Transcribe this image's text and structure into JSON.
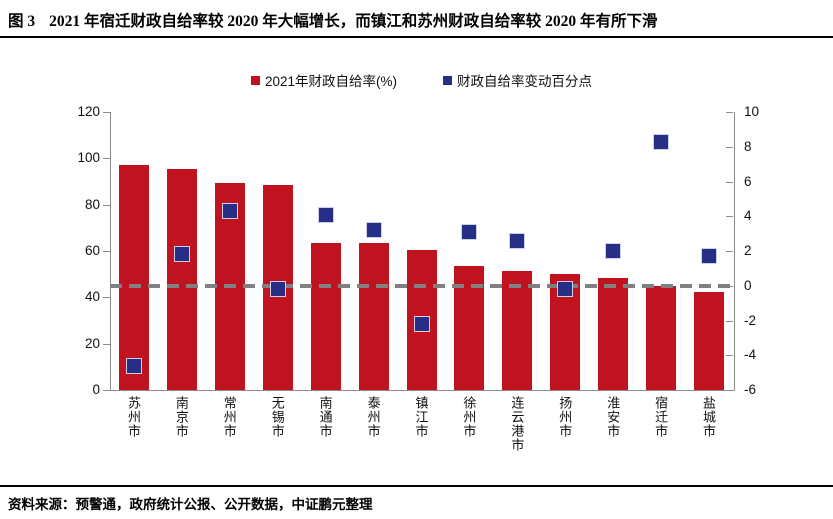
{
  "header": {
    "figure_label": "图 3",
    "title": "2021 年宿迁财政自给率较 2020 年大幅增长，而镇江和苏州财政自给率较 2020 年有所下滑"
  },
  "footer": {
    "source": "资料来源：预警通，政府统计公报、公开数据，中证鹏元整理"
  },
  "colors": {
    "bar_red": "#c1121f",
    "marker_navy": "#272e85",
    "dash_gray": "#808080",
    "axis_gray": "#8c8c8c"
  },
  "chart_data": {
    "type": "combo",
    "title": "",
    "categories": [
      "苏州市",
      "南京市",
      "常州市",
      "无锡市",
      "南通市",
      "泰州市",
      "镇江市",
      "徐州市",
      "连云港市",
      "扬州市",
      "淮安市",
      "宿迁市",
      "盐城市"
    ],
    "series": [
      {
        "name": "2021年财政自给率(%)",
        "type": "bar",
        "axis": "left",
        "color": "#c1121f",
        "values": [
          97.2,
          95.5,
          89.2,
          88.3,
          63.6,
          63.4,
          60.3,
          53.6,
          51.3,
          49.9,
          48.2,
          44.8,
          42.4
        ]
      },
      {
        "name": "财政自给率变动百分点",
        "type": "scatter-square",
        "axis": "right",
        "color": "#272e85",
        "values": [
          -4.6,
          1.8,
          4.3,
          -0.2,
          4.1,
          3.2,
          -2.2,
          3.1,
          2.6,
          -0.2,
          2.0,
          8.3,
          1.7
        ]
      }
    ],
    "axes": {
      "left": {
        "min": 0,
        "max": 120,
        "step": 20,
        "ticks": [
          0,
          20,
          40,
          60,
          80,
          100,
          120
        ]
      },
      "right": {
        "min": -6,
        "max": 10,
        "step": 2,
        "ticks": [
          -6,
          -4,
          -2,
          0,
          2,
          4,
          6,
          8,
          10
        ]
      }
    },
    "zero_line": {
      "axis": "right",
      "value": 0,
      "style": "dashed",
      "color": "#808080"
    },
    "grid": false,
    "legend_position": "top"
  }
}
